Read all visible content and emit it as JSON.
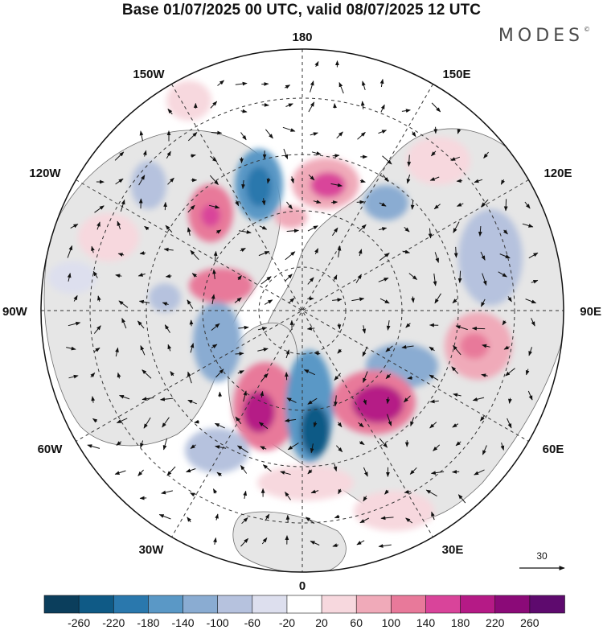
{
  "header": {
    "title": "Base 01/07/2025 00 UTC, valid 08/07/2025 12 UTC",
    "brand": "MODES",
    "brand_mark": "©"
  },
  "map": {
    "projection": "north-polar-stereographic",
    "longitude_labels": {
      "top": "180",
      "bottom": "0",
      "left": "90W",
      "right": "90E",
      "upper_left": "150W",
      "upper_right": "150E",
      "mid_upper_left": "120W",
      "mid_upper_right": "120E",
      "mid_lower_left": "60W",
      "mid_lower_right": "60E",
      "lower_left": "30W",
      "lower_right": "30E"
    },
    "wind_reference_value": "30",
    "colors": {
      "land": "#e6e6e6",
      "ocean": "#ffffff",
      "coast": "#555555",
      "graticule": "#333333"
    }
  },
  "colorbar": {
    "tick_labels": [
      "-260",
      "-220",
      "-180",
      "-140",
      "-100",
      "-60",
      "-20",
      "20",
      "60",
      "100",
      "140",
      "180",
      "220",
      "260"
    ],
    "colors": [
      "#0b3e5c",
      "#0f5a86",
      "#2a78ad",
      "#5a98c6",
      "#8aacd2",
      "#b6c2de",
      "#dddfee",
      "#ffffff",
      "#f7d8de",
      "#f0aab9",
      "#e8799a",
      "#d9449a",
      "#b51a86",
      "#8b0a78",
      "#5e0a6e"
    ]
  }
}
